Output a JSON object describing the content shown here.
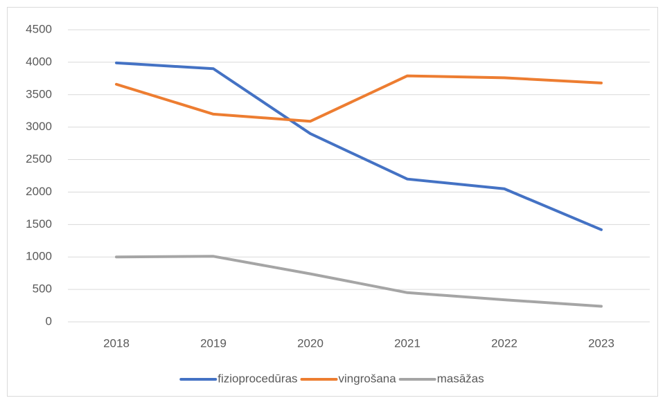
{
  "chart_data": {
    "type": "line",
    "categories": [
      "2018",
      "2019",
      "2020",
      "2021",
      "2022",
      "2023"
    ],
    "series": [
      {
        "name": "fizioprocedūras",
        "color": "#4472c4",
        "values": [
          3990,
          3900,
          2900,
          2200,
          2050,
          1420
        ]
      },
      {
        "name": "vingrošana",
        "color": "#ed7d31",
        "values": [
          3660,
          3200,
          3090,
          3790,
          3760,
          3680
        ]
      },
      {
        "name": "masāžas",
        "color": "#a5a5a5",
        "values": [
          1000,
          1010,
          740,
          450,
          340,
          240
        ]
      }
    ],
    "ylim": [
      0,
      4500
    ],
    "yticks": [
      0,
      500,
      1000,
      1500,
      2000,
      2500,
      3000,
      3500,
      4000,
      4500
    ],
    "grid": true,
    "legend": "bottom"
  }
}
